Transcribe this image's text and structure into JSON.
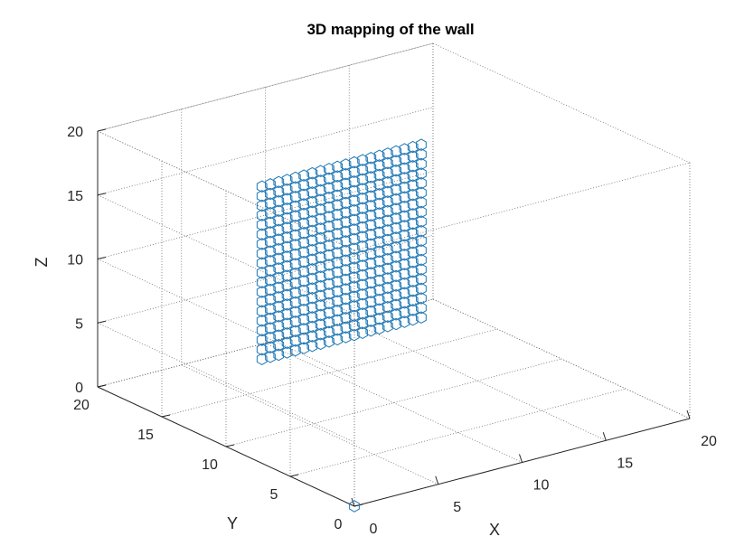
{
  "chart_data": {
    "type": "scatter3d",
    "title": "3D mapping of the wall",
    "xlabel": "X",
    "ylabel": "Y",
    "zlabel": "Z",
    "xlim": [
      0,
      20
    ],
    "ylim": [
      0,
      20
    ],
    "zlim": [
      0,
      20
    ],
    "grid": true,
    "box": true,
    "x_ticks": [
      "0",
      "5",
      "10",
      "15",
      "20"
    ],
    "y_ticks": [
      "0",
      "5",
      "10",
      "15",
      "20"
    ],
    "z_ticks": [
      "0",
      "5",
      "10",
      "15",
      "20"
    ],
    "marker": "hexagon",
    "marker_color": "#1f77b4",
    "series": [
      {
        "grid_points": {
          "x_range": [
            7.5,
            17
          ],
          "x_step": 0.5,
          "y_value": 17,
          "z_range": [
            1,
            14.5
          ],
          "z_step": 0.75
        },
        "extra_points": [
          [
            0,
            0,
            0
          ]
        ]
      }
    ]
  }
}
